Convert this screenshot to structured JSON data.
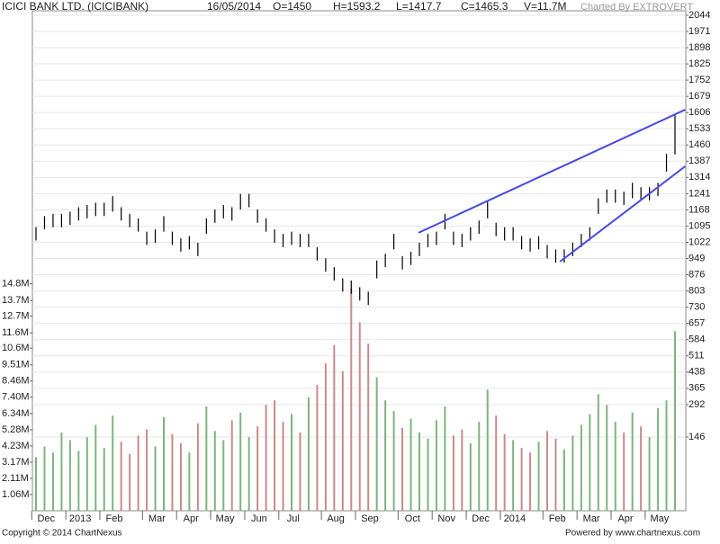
{
  "chart_data": {
    "type": "ohlc",
    "title": "ICICI BANK LTD. (ICICIBANK)",
    "header": [
      "16/05/2014",
      "O=1450",
      "H=1593.2",
      "L=1417.7",
      "C=1465.3",
      "V=11.7M"
    ],
    "credit": "Charted By EXTROVERT",
    "footer_left": "Copyright © 2014 ChartNexus",
    "footer_right": "Powered by www.chartnexus.com",
    "categories": [
      "Dec",
      null,
      null,
      null,
      "2013",
      null,
      null,
      null,
      "Feb",
      null,
      null,
      null,
      null,
      "Mar",
      null,
      null,
      null,
      "Apr",
      null,
      null,
      null,
      "May",
      null,
      null,
      null,
      "Jun",
      null,
      null,
      null,
      "Jul",
      null,
      null,
      null,
      null,
      "Aug",
      null,
      null,
      null,
      "Sep",
      null,
      null,
      null,
      null,
      "Oct",
      null,
      null,
      null,
      "Nov",
      null,
      null,
      null,
      "Dec",
      null,
      null,
      null,
      "2014",
      null,
      null,
      null,
      null,
      "Feb",
      null,
      null,
      null,
      "Mar",
      null,
      null,
      null,
      "Apr",
      null,
      null,
      null,
      "May",
      null,
      null,
      null
    ],
    "high": [
      1090,
      1140,
      1150,
      1150,
      1160,
      1180,
      1190,
      1200,
      1200,
      1230,
      1180,
      1150,
      1130,
      1070,
      1080,
      1140,
      1070,
      1040,
      1050,
      1020,
      1130,
      1170,
      1190,
      1180,
      1240,
      1240,
      1170,
      1130,
      1080,
      1060,
      1070,
      1060,
      1060,
      1000,
      950,
      910,
      860,
      850,
      820,
      800,
      940,
      970,
      1060,
      960,
      980,
      1020,
      1060,
      1070,
      1150,
      1070,
      1060,
      1090,
      1120,
      1210,
      1110,
      1090,
      1090,
      1050,
      1040,
      1050,
      1010,
      990,
      990,
      1020,
      1060,
      1090,
      1220,
      1260,
      1260,
      1250,
      1290,
      1270,
      1270,
      1290,
      1420,
      1593.2
    ],
    "low": [
      1030,
      1080,
      1090,
      1090,
      1100,
      1120,
      1130,
      1140,
      1140,
      1160,
      1120,
      1090,
      1070,
      1010,
      1020,
      1070,
      1010,
      980,
      990,
      960,
      1060,
      1110,
      1130,
      1120,
      1170,
      1180,
      1110,
      1070,
      1020,
      1000,
      1010,
      1000,
      1000,
      940,
      890,
      850,
      800,
      790,
      760,
      740,
      860,
      910,
      990,
      900,
      920,
      960,
      1000,
      1010,
      1080,
      1010,
      1000,
      1030,
      1060,
      1130,
      1050,
      1030,
      1030,
      990,
      980,
      990,
      950,
      930,
      930,
      960,
      1000,
      1030,
      1150,
      1200,
      1200,
      1190,
      1220,
      1210,
      1210,
      1230,
      1340,
      1417.7
    ],
    "volume": [
      3.5,
      4.2,
      3.8,
      5.1,
      4.6,
      3.9,
      4.8,
      5.6,
      4.1,
      6.2,
      4.5,
      3.7,
      4.9,
      5.3,
      4.2,
      6.1,
      5.0,
      4.4,
      3.8,
      5.7,
      6.8,
      5.2,
      4.6,
      5.9,
      6.4,
      4.8,
      5.5,
      6.9,
      7.2,
      5.8,
      6.3,
      5.1,
      7.4,
      8.2,
      9.6,
      10.8,
      9.1,
      14.5,
      12.3,
      10.9,
      8.7,
      7.2,
      6.5,
      5.4,
      6.0,
      5.1,
      4.7,
      5.9,
      6.8,
      4.9,
      5.3,
      4.4,
      5.8,
      7.9,
      6.2,
      5.0,
      4.6,
      4.1,
      3.8,
      4.5,
      5.2,
      4.7,
      4.0,
      4.9,
      5.6,
      6.3,
      7.6,
      6.9,
      5.8,
      5.1,
      6.4,
      5.5,
      4.8,
      6.7,
      7.2,
      11.7
    ],
    "price_color": "#000000",
    "up_color": "#7fb37f",
    "down_color": "#c98a8a",
    "trendline_color": "#4a4ae0",
    "trendlines": [
      {
        "from": {
          "index": 44.9,
          "value": 1065
        },
        "to": {
          "index": 76.2,
          "value": 1619
        }
      },
      {
        "from": {
          "index": 61.5,
          "value": 935
        },
        "to": {
          "index": 76.2,
          "value": 1364
        }
      }
    ],
    "ylim": [
      -186,
      2064
    ],
    "yticks": [
      146,
      292,
      365,
      438,
      511,
      584,
      657,
      730,
      803,
      876,
      949,
      1022,
      1095,
      1168,
      1241,
      1314,
      1387,
      1460,
      1533,
      1606,
      1679,
      1752,
      1825,
      1898,
      1971,
      2044
    ],
    "y2lim": [
      0,
      32.6
    ],
    "y2ticks": [
      {
        "value": 1.06,
        "label": "1.06M"
      },
      {
        "value": 2.11,
        "label": "2.11M"
      },
      {
        "value": 3.17,
        "label": "3.17M"
      },
      {
        "value": 4.23,
        "label": "4.23M"
      },
      {
        "value": 5.28,
        "label": "5.28M"
      },
      {
        "value": 6.34,
        "label": "6.34M"
      },
      {
        "value": 7.4,
        "label": "7.40M"
      },
      {
        "value": 8.46,
        "label": "8.46M"
      },
      {
        "value": 9.51,
        "label": "9.51M"
      },
      {
        "value": 10.6,
        "label": "10.6M"
      },
      {
        "value": 11.6,
        "label": "11.6M"
      },
      {
        "value": 12.7,
        "label": "12.7M"
      },
      {
        "value": 13.7,
        "label": "13.7M"
      },
      {
        "value": 14.8,
        "label": "14.8M"
      }
    ]
  }
}
